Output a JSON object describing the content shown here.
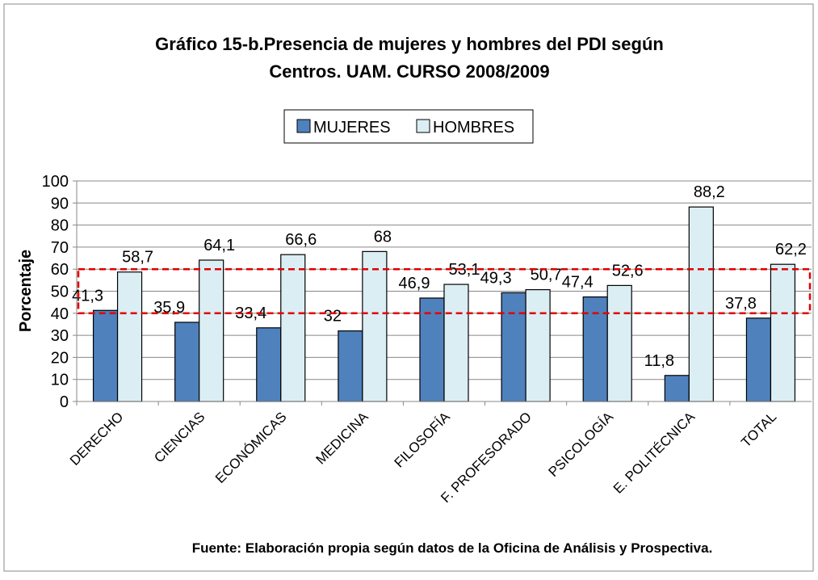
{
  "chart_data": {
    "type": "bar",
    "title": [
      "Gráfico 15-b.Presencia de mujeres y hombres del PDI según",
      "Centros. UAM. CURSO 2008/2009"
    ],
    "y_label": "Porcentaje",
    "source": "Fuente: Elaboración propia según datos de la Oficina de Análisis y Prospectiva.",
    "categories": [
      "DERECHO",
      "CIENCIAS",
      "ECONÓMICAS",
      "MEDICINA",
      "FILOSOFÍA",
      "F. PROFESORADO",
      "PSICOLOGÍA",
      "E. POLITÉCNICA",
      "TOTAL"
    ],
    "series": [
      {
        "name": "MUJERES",
        "color": "#4f81bd",
        "values": [
          41.3,
          35.9,
          33.4,
          32,
          46.9,
          49.3,
          47.4,
          11.8,
          37.8
        ],
        "value_labels": [
          "41,3",
          "35,9",
          "33,4",
          "32",
          "46,9",
          "49,3",
          "47,4",
          "11,8",
          "37,8"
        ]
      },
      {
        "name": "HOMBRES",
        "color": "#dbeef4",
        "values": [
          58.7,
          64.1,
          66.6,
          68,
          53.1,
          50.7,
          52.6,
          88.2,
          62.2
        ],
        "value_labels": [
          "58,7",
          "64,1",
          "66,6",
          "68",
          "53,1",
          "50,7",
          "52,6",
          "88,2",
          "62,2"
        ]
      }
    ],
    "ylim": [
      0,
      100
    ],
    "yticks": [
      0,
      10,
      20,
      30,
      40,
      50,
      60,
      70,
      80,
      90,
      100
    ],
    "grid": true,
    "highlight": {
      "range": [
        40,
        60
      ],
      "color": "#e00000"
    }
  }
}
